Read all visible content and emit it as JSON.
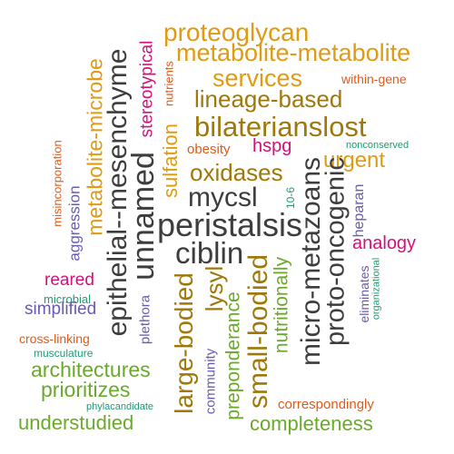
{
  "colors": {
    "background": "#ffffff",
    "gold": "#e09b12",
    "olive": "#a0780a",
    "dark_gray": "#3d3d3d",
    "green": "#6aaa2a",
    "magenta": "#d4107a",
    "orange_red": "#e05a1a",
    "teal": "#1f9a72",
    "purple": "#6a5ab0",
    "gray": "#777777"
  },
  "words": [
    {
      "text": "proteoglycan",
      "color": "gold"
    },
    {
      "text": "metabolite-metabolite",
      "color": "gold"
    },
    {
      "text": "services",
      "color": "gold"
    },
    {
      "text": "within-gene",
      "color": "orange_red"
    },
    {
      "text": "lineage-based",
      "color": "olive"
    },
    {
      "text": "bilaterianslost",
      "color": "olive"
    },
    {
      "text": "oxidases",
      "color": "olive"
    },
    {
      "text": "urgent",
      "color": "gold"
    },
    {
      "text": "nonconserved",
      "color": "teal"
    },
    {
      "text": "hspg",
      "color": "magenta"
    },
    {
      "text": "obesity",
      "color": "orange_red"
    },
    {
      "text": "mycsl",
      "color": "dark_gray"
    },
    {
      "text": "peristalsis",
      "color": "dark_gray"
    },
    {
      "text": "ciblin",
      "color": "dark_gray"
    },
    {
      "text": "analogy",
      "color": "magenta"
    },
    {
      "text": "reared",
      "color": "magenta"
    },
    {
      "text": "microbial",
      "color": "teal"
    },
    {
      "text": "simplified",
      "color": "purple"
    },
    {
      "text": "cross-linking",
      "color": "orange_red"
    },
    {
      "text": "musculature",
      "color": "teal"
    },
    {
      "text": "architectures",
      "color": "green"
    },
    {
      "text": "prioritizes",
      "color": "green"
    },
    {
      "text": "phylacandidate",
      "color": "teal"
    },
    {
      "text": "understudied",
      "color": "green"
    },
    {
      "text": "correspondingly",
      "color": "orange_red"
    },
    {
      "text": "completeness",
      "color": "green"
    },
    {
      "text": "misincorporation",
      "color": "orange_red"
    },
    {
      "text": "aggression",
      "color": "purple"
    },
    {
      "text": "metabolite-microbe",
      "color": "gold"
    },
    {
      "text": "epithelial--mesenchyme",
      "color": "dark_gray"
    },
    {
      "text": "unnamed",
      "color": "dark_gray"
    },
    {
      "text": "stereotypical",
      "color": "magenta"
    },
    {
      "text": "nutrients",
      "color": "orange_red"
    },
    {
      "text": "sulfation",
      "color": "gold"
    },
    {
      "text": "plethora",
      "color": "purple"
    },
    {
      "text": "large-bodied",
      "color": "olive"
    },
    {
      "text": "lysyl",
      "color": "olive"
    },
    {
      "text": "community",
      "color": "purple"
    },
    {
      "text": "preponderance",
      "color": "green"
    },
    {
      "text": "small-bodied",
      "color": "olive"
    },
    {
      "text": "nutritionally",
      "color": "green"
    },
    {
      "text": "10-6",
      "color": "teal"
    },
    {
      "text": "micro-metazoans",
      "color": "dark_gray"
    },
    {
      "text": "proto-oncogenic",
      "color": "dark_gray"
    },
    {
      "text": "heparan",
      "color": "purple"
    },
    {
      "text": "eliminates",
      "color": "purple"
    },
    {
      "text": "organizational",
      "color": "teal"
    }
  ]
}
